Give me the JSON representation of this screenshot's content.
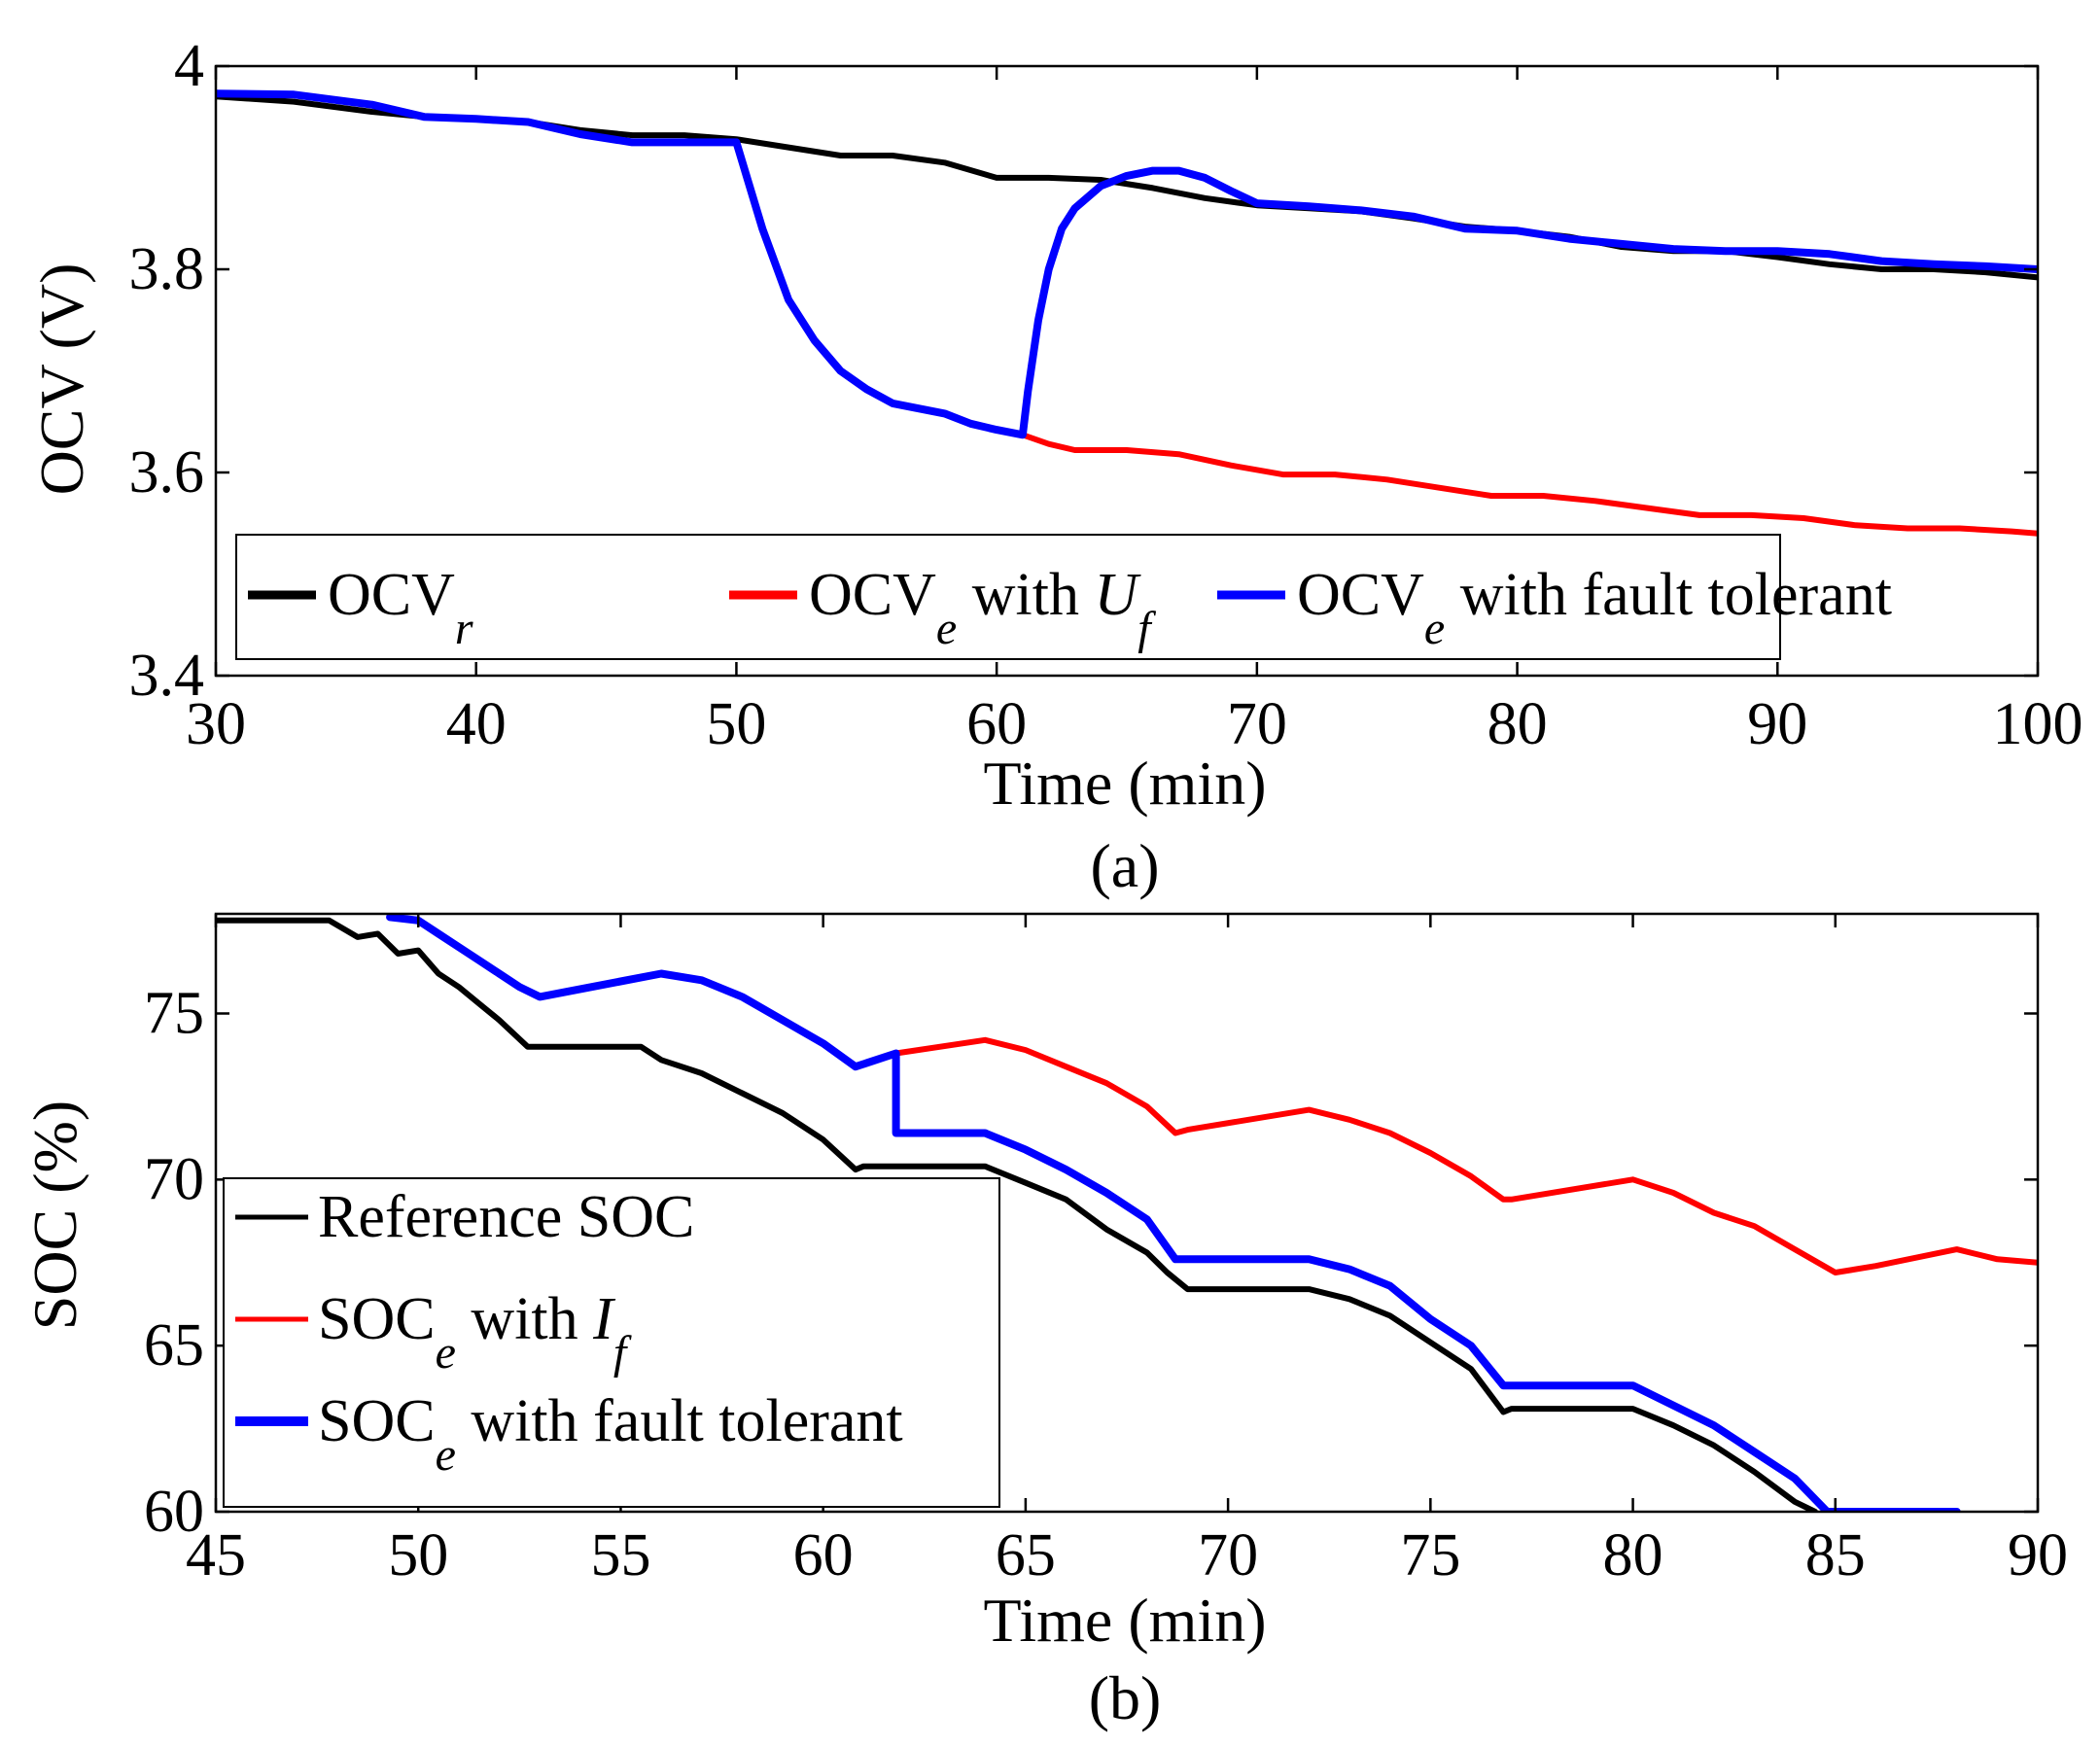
{
  "chart_data": [
    {
      "type": "line",
      "caption": "(a)",
      "xlabel": "Time (min)",
      "ylabel": "OCV (V)",
      "xlim": [
        30,
        100
      ],
      "ylim": [
        3.4,
        4.0
      ],
      "xticks": [
        "30",
        "40",
        "50",
        "60",
        "70",
        "80",
        "90",
        "100"
      ],
      "yticks": [
        "3.4",
        "3.6",
        "3.8",
        "4"
      ],
      "legend": {
        "position": "bottom-left",
        "entries": [
          {
            "main": "OCV",
            "sub": "r",
            "suffix": "",
            "suffix_sub": "",
            "tail": "",
            "color": "#000000"
          },
          {
            "main": "OCV",
            "sub": "e",
            "suffix": " with ",
            "suffix_var": "U",
            "suffix_sub": "f",
            "tail": "",
            "color": "#ff0000"
          },
          {
            "main": "OCV",
            "sub": "e",
            "suffix": " with fault tolerant",
            "suffix_var": "",
            "suffix_sub": "",
            "tail": "",
            "color": "#0000ff"
          }
        ]
      },
      "series": [
        {
          "name": "OCV_r",
          "color": "#000000",
          "x": [
            30,
            33,
            36,
            38,
            40,
            42,
            44,
            46,
            48,
            50,
            52,
            54,
            56,
            58,
            60,
            62,
            64,
            66,
            68,
            70,
            72,
            74,
            76,
            78,
            80,
            82,
            84,
            86,
            88,
            90,
            92,
            94,
            96,
            98,
            100
          ],
          "y": [
            3.97,
            3.965,
            3.955,
            3.95,
            3.948,
            3.945,
            3.937,
            3.932,
            3.932,
            3.928,
            3.92,
            3.912,
            3.912,
            3.905,
            3.89,
            3.89,
            3.888,
            3.88,
            3.87,
            3.863,
            3.86,
            3.857,
            3.85,
            3.842,
            3.838,
            3.832,
            3.822,
            3.818,
            3.818,
            3.812,
            3.805,
            3.8,
            3.8,
            3.797,
            3.792
          ]
        },
        {
          "name": "OCV_e with U_f",
          "color": "#ff0000",
          "x": [
            61,
            62,
            63,
            65,
            67,
            69,
            71,
            73,
            75,
            77,
            79,
            81,
            83,
            85,
            87,
            89,
            91,
            93,
            95,
            97,
            99,
            100
          ],
          "y": [
            3.637,
            3.628,
            3.622,
            3.622,
            3.618,
            3.607,
            3.598,
            3.598,
            3.593,
            3.585,
            3.577,
            3.577,
            3.572,
            3.565,
            3.558,
            3.558,
            3.555,
            3.548,
            3.545,
            3.545,
            3.542,
            3.54
          ]
        },
        {
          "name": "OCV_e with fault tolerant",
          "color": "#0000ff",
          "x": [
            30,
            33,
            36,
            38,
            40,
            42,
            44,
            46,
            48,
            50,
            51,
            52,
            53,
            54,
            55,
            56,
            57,
            58,
            59,
            60,
            61,
            61.2,
            61.6,
            62,
            62.5,
            63,
            64,
            65,
            66,
            67,
            68,
            69,
            70,
            72,
            74,
            76,
            78,
            80,
            82,
            84,
            86,
            88,
            90,
            92,
            94,
            96,
            98,
            100
          ],
          "y": [
            3.973,
            3.972,
            3.962,
            3.95,
            3.948,
            3.945,
            3.933,
            3.925,
            3.925,
            3.925,
            3.84,
            3.77,
            3.73,
            3.7,
            3.682,
            3.668,
            3.663,
            3.658,
            3.648,
            3.642,
            3.637,
            3.68,
            3.75,
            3.8,
            3.84,
            3.86,
            3.882,
            3.892,
            3.897,
            3.897,
            3.89,
            3.877,
            3.865,
            3.862,
            3.858,
            3.852,
            3.84,
            3.838,
            3.83,
            3.825,
            3.82,
            3.818,
            3.818,
            3.815,
            3.808,
            3.805,
            3.803,
            3.8
          ]
        }
      ]
    },
    {
      "type": "line",
      "caption": "(b)",
      "xlabel": "Time (min)",
      "ylabel": "SOC (%)",
      "xlim": [
        45,
        90
      ],
      "ylim": [
        60,
        78
      ],
      "xticks": [
        "45",
        "50",
        "55",
        "60",
        "65",
        "70",
        "75",
        "80",
        "85",
        "90"
      ],
      "yticks": [
        "60",
        "65",
        "70",
        "75"
      ],
      "legend": {
        "position": "bottom-left",
        "entries": [
          {
            "main": "Reference SOC",
            "sub": "",
            "suffix": "",
            "suffix_var": "",
            "suffix_sub": "",
            "color": "#000000"
          },
          {
            "main": "SOC",
            "sub": "e",
            "suffix": " with ",
            "suffix_var": "I",
            "suffix_sub": "f",
            "color": "#ff0000"
          },
          {
            "main": "SOC",
            "sub": "e",
            "suffix": " with fault tolerant",
            "suffix_var": "",
            "suffix_sub": "",
            "color": "#0000ff"
          }
        ]
      },
      "series": [
        {
          "name": "Reference SOC",
          "color": "#000000",
          "x": [
            45,
            47.8,
            48.5,
            49,
            49.5,
            50,
            50.5,
            51,
            51.5,
            52,
            52.7,
            53,
            55.5,
            56,
            57,
            58,
            59,
            60,
            60.8,
            61,
            64,
            65,
            66,
            67,
            68,
            68.5,
            69,
            72,
            73,
            74,
            75,
            76,
            76.8,
            77,
            80,
            81,
            82,
            83,
            84,
            84.5
          ],
          "y": [
            77.8,
            77.8,
            77.3,
            77.4,
            76.8,
            76.9,
            76.2,
            75.8,
            75.3,
            74.8,
            74.0,
            74.0,
            74.0,
            73.6,
            73.2,
            72.6,
            72.0,
            71.2,
            70.3,
            70.4,
            70.4,
            69.9,
            69.4,
            68.5,
            67.8,
            67.2,
            66.7,
            66.7,
            66.4,
            65.9,
            65.1,
            64.3,
            63.0,
            63.1,
            63.1,
            62.6,
            62.0,
            61.2,
            60.3,
            60.0
          ]
        },
        {
          "name": "SOC_e with I_f",
          "color": "#ff0000",
          "x": [
            61.8,
            64,
            65,
            66,
            67,
            68,
            68.7,
            69,
            72,
            73,
            74,
            75,
            76,
            76.8,
            77,
            80,
            81,
            82,
            83,
            84,
            85,
            86,
            88,
            89,
            90
          ],
          "y": [
            73.8,
            74.2,
            73.9,
            73.4,
            72.9,
            72.2,
            71.4,
            71.5,
            72.1,
            71.8,
            71.4,
            70.8,
            70.1,
            69.4,
            69.4,
            70.0,
            69.6,
            69.0,
            68.6,
            67.9,
            67.2,
            67.4,
            67.9,
            67.6,
            67.5
          ]
        },
        {
          "name": "SOC_e with fault tolerant",
          "color": "#0000ff",
          "x": [
            49.3,
            50,
            50.5,
            51,
            51.5,
            52,
            52.5,
            53,
            56,
            57,
            58,
            59,
            60,
            60.8,
            61.8,
            61.8,
            64,
            65,
            66,
            67,
            68,
            68.7,
            69,
            72,
            73,
            74,
            75,
            76,
            76.8,
            77,
            80,
            81,
            82,
            83,
            84,
            84.8,
            88
          ],
          "y": [
            77.9,
            77.8,
            77.4,
            77.0,
            76.6,
            76.2,
            75.8,
            75.5,
            76.2,
            76.0,
            75.5,
            74.8,
            74.1,
            73.4,
            73.8,
            71.4,
            71.4,
            70.9,
            70.3,
            69.6,
            68.8,
            67.6,
            67.6,
            67.6,
            67.3,
            66.8,
            65.8,
            65.0,
            63.8,
            63.8,
            63.8,
            63.2,
            62.6,
            61.8,
            61.0,
            60.0,
            60.0
          ]
        }
      ]
    }
  ]
}
